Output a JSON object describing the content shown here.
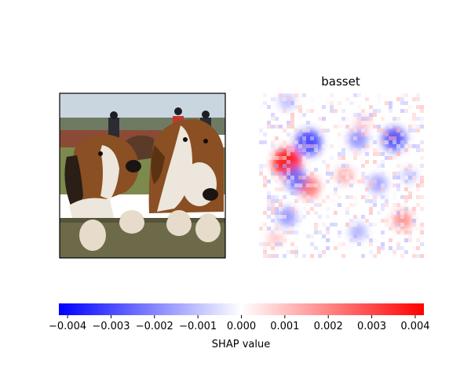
{
  "chart_data": {
    "type": "heatmap",
    "panels": [
      {
        "kind": "input-image",
        "description": "two hounds looking over a fence, riders on horses behind",
        "title": ""
      },
      {
        "kind": "shap-heatmap",
        "title": "basset",
        "colormap": "bwr",
        "value_range": [
          -0.0042,
          0.0042
        ],
        "hotspots": [
          {
            "col": 0.17,
            "row": 0.42,
            "value": 0.0041
          },
          {
            "col": 0.3,
            "row": 0.57,
            "value": 0.0025
          },
          {
            "col": 0.87,
            "row": 0.77,
            "value": 0.002
          },
          {
            "col": 0.52,
            "row": 0.5,
            "value": 0.0015
          },
          {
            "col": 0.82,
            "row": 0.25,
            "value": 0.0012
          },
          {
            "col": 0.1,
            "row": 0.88,
            "value": 0.001
          },
          {
            "col": 0.63,
            "row": 0.18,
            "value": 0.001
          },
          {
            "col": 0.3,
            "row": 0.3,
            "value": -0.0034
          },
          {
            "col": 0.22,
            "row": 0.52,
            "value": -0.0026
          },
          {
            "col": 0.82,
            "row": 0.28,
            "value": -0.003
          },
          {
            "col": 0.6,
            "row": 0.28,
            "value": -0.002
          },
          {
            "col": 0.72,
            "row": 0.55,
            "value": -0.0017
          },
          {
            "col": 0.17,
            "row": 0.75,
            "value": -0.0019
          },
          {
            "col": 0.6,
            "row": 0.84,
            "value": -0.0014
          },
          {
            "col": 0.17,
            "row": 0.05,
            "value": -0.0012
          },
          {
            "col": 0.91,
            "row": 0.5,
            "value": -0.001
          }
        ]
      }
    ],
    "colorbar": {
      "ticks": [
        "−0.004",
        "−0.003",
        "−0.002",
        "−0.001",
        "0.000",
        "0.001",
        "0.002",
        "0.003",
        "0.004"
      ],
      "tick_values": [
        -0.004,
        -0.003,
        -0.002,
        -0.001,
        0.0,
        0.001,
        0.002,
        0.003,
        0.004
      ],
      "range": [
        -0.0042,
        0.0042
      ],
      "label": "SHAP value",
      "colors": {
        "low": "#0000ff",
        "mid": "#ffffff",
        "high": "#ff0000"
      }
    }
  },
  "colors": {
    "sky": "#c9d6df",
    "trees": "#6f7a63",
    "barn": "#8b4a35",
    "grass": "#7c8a4e",
    "fence": "#6d6a4a",
    "dog_brown": "#8a4f22",
    "dog_white": "#ece6dc",
    "dog_dark": "#2a1e16"
  }
}
